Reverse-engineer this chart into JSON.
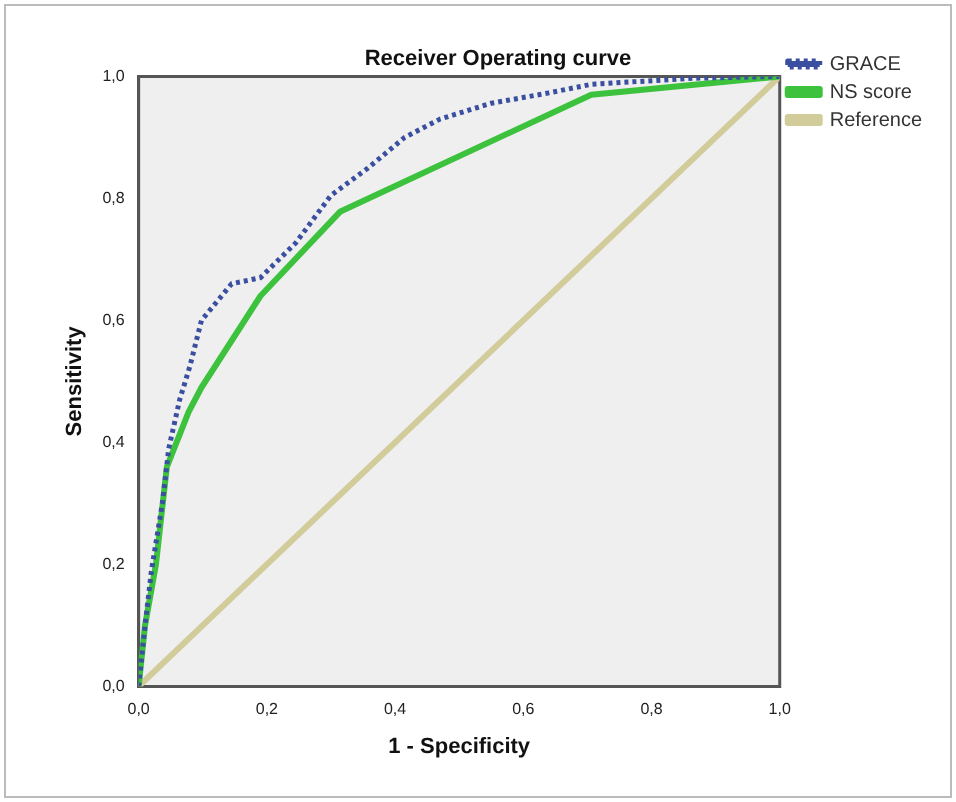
{
  "chart_data": {
    "type": "line",
    "title": "Receiver Operating curve",
    "xlabel": "1 - Specificity",
    "ylabel": "Sensitivity",
    "xlim": [
      0,
      1
    ],
    "ylim": [
      0,
      1
    ],
    "xticks": [
      {
        "value": 0,
        "label": "0,0"
      },
      {
        "value": 0.2,
        "label": "0,2"
      },
      {
        "value": 0.4,
        "label": "0,4"
      },
      {
        "value": 0.6,
        "label": "0,6"
      },
      {
        "value": 0.8,
        "label": "0,8"
      },
      {
        "value": 1,
        "label": "1,0"
      }
    ],
    "yticks": [
      {
        "value": 0,
        "label": "0,0"
      },
      {
        "value": 0.2,
        "label": "0,2"
      },
      {
        "value": 0.4,
        "label": "0,4"
      },
      {
        "value": 0.6,
        "label": "0,6"
      },
      {
        "value": 0.8,
        "label": "0,8"
      },
      {
        "value": 1,
        "label": "1,0"
      }
    ],
    "grid": false,
    "legend": "right",
    "marker": "none",
    "series": [
      {
        "name": "GRACE",
        "color": "#3a4fa0",
        "line_style": "dotted",
        "x": [
          0,
          0.01,
          0.02,
          0.037,
          0.047,
          0.064,
          0.08,
          0.098,
          0.145,
          0.19,
          0.245,
          0.3,
          0.358,
          0.415,
          0.47,
          0.55,
          0.64,
          0.706,
          0.865,
          1
        ],
        "values": [
          0,
          0.1,
          0.19,
          0.3,
          0.39,
          0.47,
          0.525,
          0.6,
          0.66,
          0.67,
          0.727,
          0.805,
          0.85,
          0.9,
          0.93,
          0.956,
          0.973,
          0.987,
          0.997,
          1
        ]
      },
      {
        "name": "NS score",
        "color": "#3cc23c",
        "line_style": "solid",
        "x": [
          0,
          0.01,
          0.027,
          0.044,
          0.078,
          0.098,
          0.19,
          0.314,
          0.706,
          1
        ],
        "values": [
          0,
          0.1,
          0.2,
          0.36,
          0.45,
          0.49,
          0.64,
          0.778,
          0.97,
          1
        ]
      },
      {
        "name": "Reference",
        "color": "#d2cb9a",
        "line_style": "solid",
        "x": [
          0,
          1
        ],
        "values": [
          0,
          1
        ]
      }
    ]
  }
}
